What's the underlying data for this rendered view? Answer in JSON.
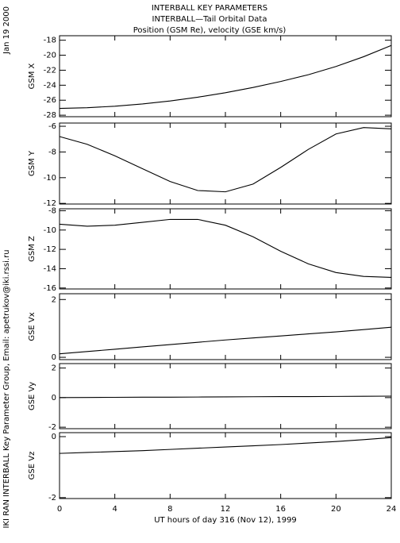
{
  "title_lines": [
    "INTERBALL KEY PARAMETERS",
    "INTERBALL—Tail Orbital Data",
    "Position (GSM Re), velocity (GSE km/s)"
  ],
  "date": "Jan 19 2000",
  "credit": "IKI RAN INTERBALL Key Parameter Group, Email: apetrukov@iki.rssi.ru",
  "chart_data": [
    {
      "type": "line",
      "ylabel": "GSM X",
      "color": "#000000",
      "x": [
        0,
        2,
        4,
        6,
        8,
        10,
        12,
        14,
        16,
        18,
        20,
        22,
        24
      ],
      "values": [
        -27.1,
        -27.0,
        -26.8,
        -26.5,
        -26.1,
        -25.6,
        -25.0,
        -24.3,
        -23.5,
        -22.6,
        -21.5,
        -20.2,
        -18.7
      ],
      "xlim": [
        0,
        24
      ],
      "xticks": [
        0,
        4,
        8,
        12,
        16,
        20,
        24
      ],
      "ylim": [
        -28.2,
        -17.4
      ],
      "yticks": [
        -28,
        -26,
        -24,
        -22,
        -20,
        -18
      ]
    },
    {
      "type": "line",
      "ylabel": "GSM Y",
      "color": "#000000",
      "x": [
        0,
        2,
        4,
        6,
        8,
        10,
        12,
        14,
        16,
        18,
        20,
        22,
        24
      ],
      "values": [
        -6.8,
        -7.4,
        -8.3,
        -9.3,
        -10.3,
        -11.0,
        -11.1,
        -10.5,
        -9.2,
        -7.8,
        -6.6,
        -6.1,
        -6.2
      ],
      "xlim": [
        0,
        24
      ],
      "xticks": [
        0,
        4,
        8,
        12,
        16,
        20,
        24
      ],
      "ylim": [
        -12.05,
        -5.75
      ],
      "yticks": [
        -12,
        -10,
        -8,
        -6
      ]
    },
    {
      "type": "line",
      "ylabel": "GSM Z",
      "color": "#000000",
      "x": [
        0,
        2,
        4,
        6,
        8,
        10,
        12,
        14,
        16,
        18,
        20,
        22,
        24
      ],
      "values": [
        -9.4,
        -9.6,
        -9.5,
        -9.2,
        -8.9,
        -8.9,
        -9.5,
        -10.7,
        -12.2,
        -13.5,
        -14.4,
        -14.8,
        -14.9
      ],
      "xlim": [
        0,
        24
      ],
      "xticks": [
        0,
        4,
        8,
        12,
        16,
        20,
        24
      ],
      "ylim": [
        -16.1,
        -7.8
      ],
      "yticks": [
        -16,
        -14,
        -12,
        -10,
        -8
      ]
    },
    {
      "type": "line",
      "ylabel": "GSE Vx",
      "color": "#000000",
      "x": [
        0,
        2,
        4,
        6,
        8,
        10,
        12,
        14,
        16,
        18,
        20,
        22,
        24
      ],
      "values": [
        0.12,
        0.2,
        0.28,
        0.36,
        0.44,
        0.52,
        0.6,
        0.67,
        0.74,
        0.81,
        0.88,
        0.96,
        1.04
      ],
      "xlim": [
        0,
        24
      ],
      "xticks": [
        0,
        4,
        8,
        12,
        16,
        20,
        24
      ],
      "ylim": [
        -0.08,
        2.2
      ],
      "yticks": [
        0,
        2
      ]
    },
    {
      "type": "line",
      "ylabel": "GSE Vy",
      "color": "#000000",
      "x": [
        0,
        2,
        4,
        6,
        8,
        10,
        12,
        14,
        16,
        18,
        20,
        22,
        24
      ],
      "values": [
        0.0,
        0.01,
        0.02,
        0.03,
        0.03,
        0.04,
        0.05,
        0.06,
        0.07,
        0.07,
        0.08,
        0.09,
        0.1
      ],
      "xlim": [
        0,
        24
      ],
      "xticks": [
        0,
        4,
        8,
        12,
        16,
        20,
        24
      ],
      "ylim": [
        -2.1,
        2.3
      ],
      "yticks": [
        -2,
        0,
        2
      ]
    },
    {
      "type": "line",
      "ylabel": "GSE Vz",
      "xlabel": "UT hours of day 316 (Nov 12), 1999",
      "color": "#000000",
      "x": [
        0,
        2,
        4,
        6,
        8,
        10,
        12,
        14,
        16,
        18,
        20,
        22,
        24
      ],
      "values": [
        -0.55,
        -0.52,
        -0.49,
        -0.46,
        -0.42,
        -0.38,
        -0.34,
        -0.3,
        -0.26,
        -0.21,
        -0.16,
        -0.1,
        -0.03
      ],
      "xlim": [
        0,
        24
      ],
      "xticks": [
        0,
        4,
        8,
        12,
        16,
        20,
        24
      ],
      "ylim": [
        -2.03,
        0.13
      ],
      "yticks": [
        -2,
        0
      ]
    }
  ]
}
